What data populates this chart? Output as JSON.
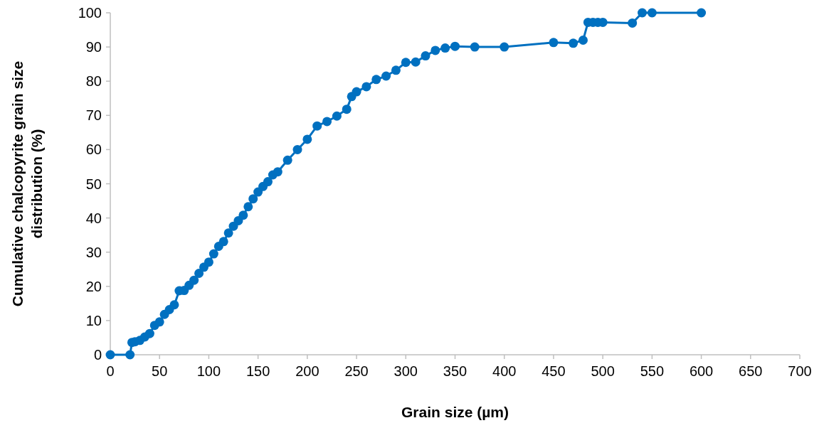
{
  "chart_data": {
    "type": "line",
    "xlabel": "Grain size (µm)",
    "ylabel": "Cumulative chalcopyrite grain size distribution (%)",
    "marker": "circle",
    "xlim": [
      0,
      700
    ],
    "xticks": [
      0,
      50,
      100,
      150,
      200,
      250,
      300,
      350,
      400,
      450,
      500,
      550,
      600,
      650,
      700
    ],
    "ylim": [
      0,
      100
    ],
    "yticks": [
      0,
      10,
      20,
      30,
      40,
      50,
      60,
      70,
      80,
      90,
      100
    ],
    "grid": false,
    "series": [
      {
        "color": "#0070c0",
        "x": [
          0,
          20,
          22,
          25,
          30,
          35,
          40,
          45,
          50,
          55,
          60,
          65,
          70,
          75,
          80,
          85,
          90,
          95,
          100,
          105,
          110,
          115,
          120,
          125,
          130,
          135,
          140,
          145,
          150,
          155,
          160,
          165,
          170,
          180,
          190,
          200,
          210,
          220,
          230,
          240,
          245,
          250,
          260,
          270,
          280,
          290,
          300,
          310,
          320,
          330,
          340,
          350,
          370,
          400,
          450,
          470,
          480,
          485,
          490,
          495,
          500,
          530,
          540,
          550,
          600
        ],
        "values": [
          0,
          0,
          3.6,
          3.8,
          4.2,
          5.2,
          6.2,
          8.6,
          9.6,
          11.8,
          13.2,
          14.6,
          18.7,
          18.8,
          20.3,
          21.8,
          23.8,
          25.6,
          27.1,
          29.5,
          31.7,
          33.1,
          35.6,
          37.6,
          39.2,
          40.8,
          43.3,
          45.6,
          47.6,
          49.2,
          50.6,
          52.6,
          53.5,
          56.9,
          60,
          63,
          66.9,
          68.2,
          69.8,
          71.8,
          75.5,
          76.9,
          78.4,
          80.5,
          81.5,
          83.2,
          85.5,
          85.6,
          87.4,
          89,
          89.7,
          90.2,
          90,
          90,
          91.3,
          91.1,
          92,
          97.2,
          97.2,
          97.2,
          97.2,
          97,
          100,
          100,
          100
        ]
      }
    ]
  }
}
